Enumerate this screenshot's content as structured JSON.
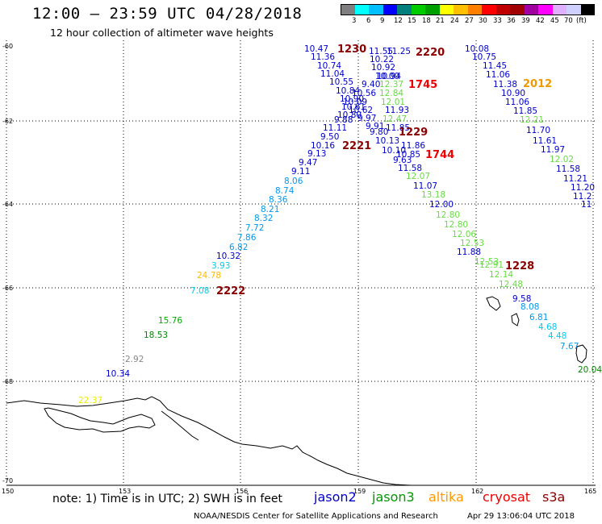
{
  "header": {
    "title": "12:00 – 23:59 UTC 04/28/2018",
    "subtitle": "12 hour collection of altimeter wave heights"
  },
  "color_scale": {
    "colors": [
      "#7f7f7f",
      "#00ffff",
      "#00bfff",
      "#0000ff",
      "#007f7f",
      "#00cc00",
      "#00a000",
      "#ffff00",
      "#ffc000",
      "#ff7f00",
      "#ff0000",
      "#c00000",
      "#a00000",
      "#a000a0",
      "#ff00ff",
      "#e0b0ff",
      "#d0d0ff",
      "#000000"
    ],
    "labels": [
      "3",
      "6",
      "9",
      "12",
      "15",
      "18",
      "21",
      "24",
      "27",
      "30",
      "33",
      "36",
      "39",
      "42",
      "45",
      "70",
      "(ft)"
    ]
  },
  "axes": {
    "lat_labels": [
      "-60",
      "-62",
      "-64",
      "-66",
      "-68",
      "-70"
    ],
    "lon_labels": [
      "150",
      "153",
      "156",
      "159",
      "162",
      "165"
    ]
  },
  "measurements": [
    {
      "text": "10.47",
      "color": "#0000cc"
    },
    {
      "text": "11.36",
      "color": "#0000cc"
    },
    {
      "text": "10.74",
      "color": "#0000cc"
    },
    {
      "text": "11.04",
      "color": "#0000cc"
    },
    {
      "text": "10.55",
      "color": "#0000cc"
    },
    {
      "text": "10.84",
      "color": "#0000cc"
    },
    {
      "text": "10.90",
      "color": "#0000cc"
    },
    {
      "text": "10.61",
      "color": "#0000cc"
    },
    {
      "text": "10.80",
      "color": "#0000cc"
    },
    {
      "text": "9.88",
      "color": "#0000cc"
    },
    {
      "text": "11.11",
      "color": "#0000cc"
    },
    {
      "text": "9.50",
      "color": "#0000cc"
    },
    {
      "text": "10.16",
      "color": "#0000cc"
    },
    {
      "text": "9.13",
      "color": "#0000cc"
    },
    {
      "text": "9.47",
      "color": "#0000cc"
    },
    {
      "text": "9.11",
      "color": "#0000cc"
    },
    {
      "text": "8.06",
      "color": "#0099ee"
    },
    {
      "text": "8.74",
      "color": "#0099ee"
    },
    {
      "text": "8.36",
      "color": "#0099ee"
    },
    {
      "text": "8.21",
      "color": "#0099ee"
    },
    {
      "text": "8.32",
      "color": "#0099ee"
    },
    {
      "text": "7.72",
      "color": "#0099ee"
    },
    {
      "text": "7.86",
      "color": "#0099ee"
    },
    {
      "text": "6.82",
      "color": "#0099ee"
    },
    {
      "text": "10.32",
      "color": "#0000cc"
    },
    {
      "text": "3.93",
      "color": "#00ccee"
    },
    {
      "text": "24.78",
      "color": "#ffbb00"
    },
    {
      "text": "7.08",
      "color": "#00ccee"
    },
    {
      "text": "15.76",
      "color": "#00aa00"
    },
    {
      "text": "18.53",
      "color": "#008800"
    },
    {
      "text": "2.92",
      "color": "#888888"
    },
    {
      "text": "10.34",
      "color": "#0000cc"
    },
    {
      "text": "22.37",
      "color": "#eeee00"
    },
    {
      "text": "11.55",
      "color": "#0000cc"
    },
    {
      "text": "11.25",
      "color": "#0000cc"
    },
    {
      "text": "10.22",
      "color": "#0000cc"
    },
    {
      "text": "10.92",
      "color": "#0000cc"
    },
    {
      "text": "10.00",
      "color": "#0000cc"
    },
    {
      "text": "10.94",
      "color": "#0000cc"
    },
    {
      "text": "9.40",
      "color": "#0000cc"
    },
    {
      "text": "12.37",
      "color": "#66dd44"
    },
    {
      "text": "10.56",
      "color": "#0000cc"
    },
    {
      "text": "12.84",
      "color": "#66dd44"
    },
    {
      "text": "10.09",
      "color": "#0000cc"
    },
    {
      "text": "12.01",
      "color": "#66dd44"
    },
    {
      "text": "10.62",
      "color": "#0000cc"
    },
    {
      "text": "11.93",
      "color": "#0000cc"
    },
    {
      "text": "9.97",
      "color": "#0000cc"
    },
    {
      "text": "12.47",
      "color": "#66dd44"
    },
    {
      "text": "9.91",
      "color": "#0000cc"
    },
    {
      "text": "11.85",
      "color": "#0000cc"
    },
    {
      "text": "9.80",
      "color": "#0000cc"
    },
    {
      "text": "10.13",
      "color": "#0000cc"
    },
    {
      "text": "11.86",
      "color": "#0000cc"
    },
    {
      "text": "10.10",
      "color": "#0000cc"
    },
    {
      "text": "10.85",
      "color": "#0000cc"
    },
    {
      "text": "9.63",
      "color": "#0000cc"
    },
    {
      "text": "11.58",
      "color": "#0000cc"
    },
    {
      "text": "12.07",
      "color": "#66dd44"
    },
    {
      "text": "11.07",
      "color": "#0000cc"
    },
    {
      "text": "13.18",
      "color": "#66dd44"
    },
    {
      "text": "12.00",
      "color": "#0000cc"
    },
    {
      "text": "12.80",
      "color": "#66dd44"
    },
    {
      "text": "12.80",
      "color": "#66dd44"
    },
    {
      "text": "12.06",
      "color": "#66dd44"
    },
    {
      "text": "12.53",
      "color": "#66dd44"
    },
    {
      "text": "11.88",
      "color": "#0000cc"
    },
    {
      "text": "12.53",
      "color": "#66dd44"
    },
    {
      "text": "12.91",
      "color": "#66dd44"
    },
    {
      "text": "12.14",
      "color": "#66dd44"
    },
    {
      "text": "12.48",
      "color": "#66dd44"
    },
    {
      "text": "9.58",
      "color": "#0000cc"
    },
    {
      "text": "8.08",
      "color": "#0099ee"
    },
    {
      "text": "6.81",
      "color": "#0099ee"
    },
    {
      "text": "4.68",
      "color": "#00ccee"
    },
    {
      "text": "4.48",
      "color": "#00ccee"
    },
    {
      "text": "7.67",
      "color": "#0099ee"
    },
    {
      "text": "20.04",
      "color": "#008800"
    },
    {
      "text": "10.08",
      "color": "#0000cc"
    },
    {
      "text": "10.75",
      "color": "#0000cc"
    },
    {
      "text": "11.45",
      "color": "#0000cc"
    },
    {
      "text": "11.06",
      "color": "#0000cc"
    },
    {
      "text": "11.38",
      "color": "#0000cc"
    },
    {
      "text": "10.90",
      "color": "#0000cc"
    },
    {
      "text": "11.06",
      "color": "#0000cc"
    },
    {
      "text": "11.85",
      "color": "#0000cc"
    },
    {
      "text": "12.21",
      "color": "#66dd44"
    },
    {
      "text": "11.70",
      "color": "#0000cc"
    },
    {
      "text": "11.61",
      "color": "#0000cc"
    },
    {
      "text": "11.97",
      "color": "#0000cc"
    },
    {
      "text": "12.02",
      "color": "#66dd44"
    },
    {
      "text": "11.58",
      "color": "#0000cc"
    },
    {
      "text": "11.21",
      "color": "#0000cc"
    },
    {
      "text": "11.20",
      "color": "#0000cc"
    },
    {
      "text": "11.2",
      "color": "#0000cc"
    },
    {
      "text": "11",
      "color": "#0000cc"
    }
  ],
  "pass_labels": [
    {
      "text": "1230",
      "color": "#8b0000"
    },
    {
      "text": "2220",
      "color": "#8b0000"
    },
    {
      "text": "1745",
      "color": "#ee0000"
    },
    {
      "text": "2012",
      "color": "#ee9900"
    },
    {
      "text": "1229",
      "color": "#8b0000"
    },
    {
      "text": "2221",
      "color": "#8b0000"
    },
    {
      "text": "1744",
      "color": "#ee0000"
    },
    {
      "text": "1228",
      "color": "#8b0000"
    },
    {
      "text": "2222",
      "color": "#8b0000"
    }
  ],
  "footer": {
    "note": "note:  1) Time is in UTC;  2) SWH is in feet",
    "satellites": [
      {
        "name": "jason2",
        "color": "#0000cc"
      },
      {
        "name": "jason3",
        "color": "#009900"
      },
      {
        "name": "altika",
        "color": "#ff9900"
      },
      {
        "name": "cryosat",
        "color": "#ee0000"
      },
      {
        "name": "s3a",
        "color": "#880000"
      }
    ],
    "credit": "NOAA/NESDIS Center for Satellite Applications and Research",
    "timestamp": "Apr 29 13:06:04 UTC 2018"
  }
}
